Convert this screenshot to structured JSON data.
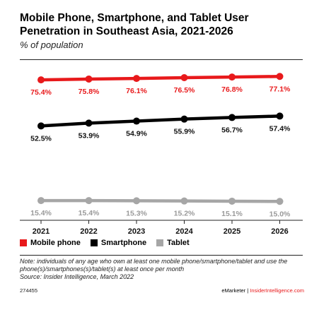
{
  "title": "Mobile Phone, Smartphone, and Tablet User Penetration in Southeast Asia, 2021-2026",
  "subtitle": "% of population",
  "note": "Note: individuals of any age who own at least one mobile phone/smartphone/tablet and use the phone(s)/smartphones(s)/tablet(s) at least once per month",
  "source": "Source: Insider Intelligence, March 2022",
  "chart_id": "274455",
  "footer_left": "eMarketer",
  "footer_sep": "|",
  "footer_right": "InsiderIntelligence.com",
  "colors": {
    "mobile": "#e8191b",
    "smartphone": "#000000",
    "tablet": "#a6a6a6"
  },
  "chart_data": {
    "type": "line",
    "title": "Mobile Phone, Smartphone, and Tablet User Penetration in Southeast Asia, 2021-2026",
    "subtitle": "% of population",
    "categories": [
      "2021",
      "2022",
      "2023",
      "2024",
      "2025",
      "2026"
    ],
    "series": [
      {
        "name": "Mobile phone",
        "values": [
          75.4,
          75.8,
          76.1,
          76.5,
          76.8,
          77.1
        ],
        "labels": [
          "75.4%",
          "75.8%",
          "76.1%",
          "76.5%",
          "76.8%",
          "77.1%"
        ]
      },
      {
        "name": "Smartphone",
        "values": [
          52.5,
          53.9,
          54.9,
          55.9,
          56.7,
          57.4
        ],
        "labels": [
          "52.5%",
          "53.9%",
          "54.9%",
          "55.9%",
          "56.7%",
          "57.4%"
        ]
      },
      {
        "name": "Tablet",
        "values": [
          15.4,
          15.4,
          15.3,
          15.2,
          15.1,
          15.0
        ],
        "labels": [
          "15.4%",
          "15.4%",
          "15.3%",
          "15.2%",
          "15.1%",
          "15.0%"
        ]
      }
    ],
    "legend_position": "bottom-left",
    "grid": false
  }
}
